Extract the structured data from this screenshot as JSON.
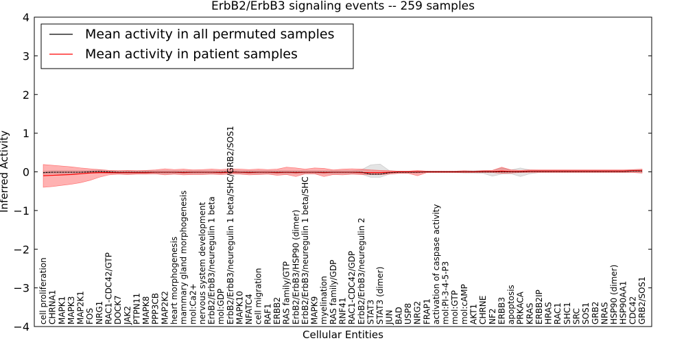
{
  "chart_data": {
    "type": "line",
    "title": "ErbB2/ErbB3 signaling events -- 259 samples",
    "xlabel": "Cellular Entities",
    "ylabel": "Inferred Activity",
    "ylim": [
      -4,
      4
    ],
    "yticks": [
      "4",
      "3",
      "2",
      "1",
      "0",
      "−1",
      "−2",
      "−3",
      "−4"
    ],
    "legend_position": "top-left",
    "categories": [
      "cell proliferation",
      "CHRNA1",
      "MAPK1",
      "MAPK3",
      "MAP2K1",
      "FOS",
      "NRG1",
      "RAC1-CDC42/GTP",
      "DOCK7",
      "JAK2",
      "PTPN11",
      "MAPK8",
      "PPP3CB",
      "MAP2K2",
      "heart morphogenesis",
      "mammary gland morphogenesis",
      "mol:Ca2+",
      "nervous system development",
      "ErbB2/ErbB3/neuregulin 1 beta",
      "mol:GDP",
      "ErbB2/ErbB3/neuregulin 1 beta/SHC/GRB2/SOS1",
      "MAPK10",
      "NFATC4",
      "cell migration",
      "RAF1",
      "ERBB2",
      "RAS family/GTP",
      "ErbB2/ErbB3/HSP90 (dimer)",
      "ErbB2/ErbB3/neuregulin 1 beta/SHC",
      "MAPK9",
      "myelination",
      "RAS family/GDP",
      "RNF41",
      "RAC1-CDC42/GDP",
      "ErbB2/ErbB3/neuregulin 2",
      "STAT3",
      "STAT3 (dimer)",
      "JUN",
      "BAD",
      "USP8",
      "NRG2",
      "FRAP1",
      "activation of caspase activity",
      "mol:PI-3-4-5-P3",
      "mol:GTP",
      "mol:cAMP",
      "AKT1",
      "CHRNE",
      "NF2",
      "ERBB3",
      "apoptosis",
      "PRKACA",
      "KRAS",
      "ERBB2IP",
      "HRAS",
      "RAC1",
      "SHC1",
      "SRC",
      "SOS1",
      "GRB2",
      "NRAS",
      "HSP90 (dimer)",
      "HSP90AA1",
      "CDC42",
      "GRB2/SOS1"
    ],
    "series": [
      {
        "name": "Mean activity in all permuted samples",
        "color": "#000000",
        "values": [
          -0.02,
          -0.01,
          -0.01,
          -0.01,
          -0.01,
          0.0,
          0.01,
          0.0,
          -0.01,
          -0.01,
          -0.01,
          -0.01,
          -0.01,
          -0.01,
          -0.01,
          -0.01,
          -0.01,
          -0.01,
          -0.01,
          -0.01,
          0.0,
          -0.01,
          -0.01,
          -0.01,
          -0.01,
          -0.01,
          -0.01,
          -0.01,
          -0.01,
          -0.01,
          -0.01,
          -0.01,
          -0.01,
          -0.01,
          -0.01,
          -0.06,
          -0.06,
          -0.02,
          -0.01,
          -0.01,
          -0.01,
          0.0,
          0.0,
          0.0,
          0.0,
          0.0,
          0.0,
          0.0,
          0.0,
          0.0,
          0.0,
          0.0,
          0.01,
          0.01,
          0.01,
          0.01,
          0.01,
          0.01,
          0.01,
          0.01,
          0.01,
          0.01,
          0.01,
          0.02,
          0.02
        ],
        "band_low": [
          -0.06,
          -0.05,
          -0.05,
          -0.05,
          -0.05,
          -0.04,
          -0.03,
          -0.04,
          -0.05,
          -0.05,
          -0.05,
          -0.05,
          -0.05,
          -0.05,
          -0.05,
          -0.05,
          -0.05,
          -0.05,
          -0.05,
          -0.05,
          -0.04,
          -0.05,
          -0.05,
          -0.05,
          -0.05,
          -0.05,
          -0.05,
          -0.05,
          -0.05,
          -0.05,
          -0.05,
          -0.05,
          -0.05,
          -0.05,
          -0.06,
          -0.14,
          -0.14,
          -0.06,
          -0.04,
          -0.03,
          -0.03,
          -0.02,
          -0.02,
          -0.02,
          -0.02,
          -0.03,
          -0.03,
          -0.04,
          -0.11,
          -0.06,
          -0.05,
          -0.12,
          -0.05,
          -0.02,
          -0.02,
          -0.02,
          -0.02,
          -0.02,
          -0.02,
          -0.02,
          -0.02,
          -0.02,
          -0.02,
          -0.02,
          -0.03
        ],
        "band_high": [
          0.02,
          0.03,
          0.03,
          0.03,
          0.03,
          0.04,
          0.05,
          0.04,
          0.03,
          0.03,
          0.03,
          0.03,
          0.03,
          0.03,
          0.03,
          0.03,
          0.03,
          0.03,
          0.03,
          0.03,
          0.04,
          0.03,
          0.03,
          0.03,
          0.03,
          0.03,
          0.03,
          0.03,
          0.03,
          0.03,
          0.03,
          0.03,
          0.03,
          0.03,
          0.05,
          0.18,
          0.2,
          0.03,
          0.02,
          0.02,
          0.02,
          0.02,
          0.02,
          0.02,
          0.02,
          0.03,
          0.03,
          0.04,
          0.04,
          0.1,
          0.05,
          0.1,
          0.05,
          0.04,
          0.04,
          0.04,
          0.04,
          0.04,
          0.04,
          0.04,
          0.04,
          0.04,
          0.04,
          0.05,
          0.06
        ]
      },
      {
        "name": "Mean activity in patient samples",
        "color": "#ff0000",
        "values": [
          -0.1,
          -0.09,
          -0.08,
          -0.07,
          -0.05,
          -0.03,
          -0.02,
          -0.02,
          -0.02,
          -0.02,
          -0.02,
          -0.02,
          -0.01,
          -0.01,
          -0.01,
          -0.02,
          -0.01,
          -0.01,
          -0.01,
          -0.02,
          -0.01,
          -0.01,
          -0.02,
          -0.01,
          -0.01,
          -0.02,
          -0.01,
          -0.02,
          -0.01,
          -0.01,
          -0.02,
          -0.01,
          -0.01,
          -0.01,
          -0.02,
          -0.02,
          -0.02,
          -0.01,
          0.0,
          0.0,
          0.0,
          0.0,
          0.0,
          0.0,
          0.0,
          0.0,
          0.0,
          0.01,
          0.01,
          0.02,
          0.01,
          0.01,
          0.02,
          0.02,
          0.02,
          0.02,
          0.02,
          0.02,
          0.02,
          0.02,
          0.02,
          0.02,
          0.02,
          0.03,
          0.03
        ],
        "band_low": [
          -0.4,
          -0.38,
          -0.35,
          -0.32,
          -0.28,
          -0.22,
          -0.14,
          -0.08,
          -0.06,
          -0.07,
          -0.06,
          -0.06,
          -0.05,
          -0.08,
          -0.06,
          -0.08,
          -0.07,
          -0.07,
          -0.06,
          -0.07,
          -0.06,
          -0.06,
          -0.08,
          -0.07,
          -0.06,
          -0.09,
          -0.07,
          -0.12,
          -0.05,
          -0.05,
          -0.12,
          -0.07,
          -0.08,
          -0.06,
          -0.07,
          -0.07,
          -0.07,
          -0.06,
          -0.04,
          -0.04,
          -0.1,
          -0.02,
          -0.02,
          -0.02,
          -0.02,
          -0.02,
          -0.02,
          -0.02,
          -0.02,
          -0.04,
          -0.03,
          -0.02,
          -0.02,
          -0.02,
          -0.02,
          -0.02,
          -0.02,
          -0.02,
          -0.02,
          -0.02,
          -0.02,
          -0.02,
          -0.02,
          -0.02,
          -0.03
        ],
        "band_high": [
          0.19,
          0.17,
          0.15,
          0.13,
          0.1,
          0.08,
          0.06,
          0.04,
          0.03,
          0.04,
          0.03,
          0.04,
          0.05,
          0.08,
          0.06,
          0.07,
          0.05,
          0.06,
          0.07,
          0.06,
          0.08,
          0.07,
          0.06,
          0.07,
          0.06,
          0.07,
          0.12,
          0.1,
          0.07,
          0.1,
          0.09,
          0.05,
          0.07,
          0.08,
          0.07,
          0.05,
          0.04,
          0.03,
          0.02,
          0.02,
          0.04,
          0.02,
          0.02,
          0.02,
          0.02,
          0.03,
          0.02,
          0.03,
          0.04,
          0.12,
          0.05,
          0.04,
          0.05,
          0.05,
          0.05,
          0.05,
          0.05,
          0.05,
          0.05,
          0.05,
          0.05,
          0.05,
          0.05,
          0.06,
          0.07
        ]
      }
    ]
  }
}
